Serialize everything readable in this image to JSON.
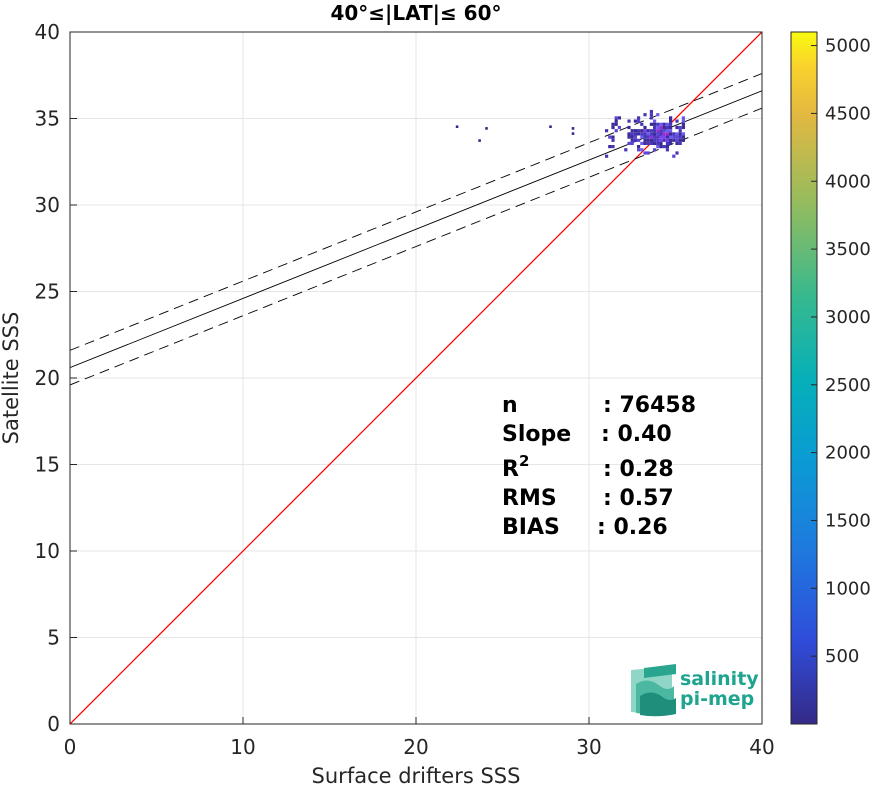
{
  "chart_data": {
    "type": "heatmap",
    "title": "40°≤|LAT|≤ 60°",
    "xlabel": "Surface drifters SSS",
    "ylabel": "Satellite SSS",
    "xlim": [
      0,
      40
    ],
    "ylim": [
      0,
      40
    ],
    "xticks": [
      "0",
      "10",
      "20",
      "30",
      "40"
    ],
    "yticks": [
      "0",
      "5",
      "10",
      "15",
      "20",
      "25",
      "30",
      "35",
      "40"
    ],
    "grid": true,
    "colorbar": {
      "range": [
        0,
        5100
      ],
      "ticks": [
        "500",
        "1000",
        "1500",
        "2000",
        "2500",
        "3000",
        "3500",
        "4000",
        "4500",
        "5000"
      ],
      "colormap": "parula"
    },
    "lines": [
      {
        "name": "1:1 line",
        "color": "#ff0000",
        "slope": 1.0,
        "intercept": 0.0,
        "style": "solid"
      },
      {
        "name": "fit",
        "color": "#000000",
        "slope": 0.4,
        "intercept": 20.6,
        "style": "solid"
      },
      {
        "name": "fit + std",
        "color": "#000000",
        "slope": 0.4,
        "intercept": 21.6,
        "style": "dashed"
      },
      {
        "name": "fit - std",
        "color": "#000000",
        "slope": 0.4,
        "intercept": 19.6,
        "style": "dashed"
      }
    ],
    "density_cluster": {
      "x_range": [
        30.0,
        35.5
      ],
      "y_range": [
        32.8,
        35.5
      ],
      "center": [
        33.9,
        34.2
      ],
      "outliers": [
        [
          22.3,
          34.6
        ],
        [
          24.0,
          34.5
        ],
        [
          23.6,
          33.8
        ],
        [
          27.7,
          34.6
        ],
        [
          29.0,
          34.5
        ],
        [
          29.0,
          34.2
        ]
      ]
    },
    "stats": {
      "n_label": "n",
      "n_value": ": 76458",
      "slope_label": "Slope",
      "slope_value": ": 0.40",
      "r2_label": "R",
      "r2_sup": "2",
      "r2_value": ": 0.28",
      "rms_label": "RMS",
      "rms_value": ": 0.57",
      "bias_label": "BIAS",
      "bias_value": ": 0.26"
    }
  },
  "logo": {
    "line1": "salinity",
    "line2": "pi-mep",
    "color": "#1fa58f"
  }
}
